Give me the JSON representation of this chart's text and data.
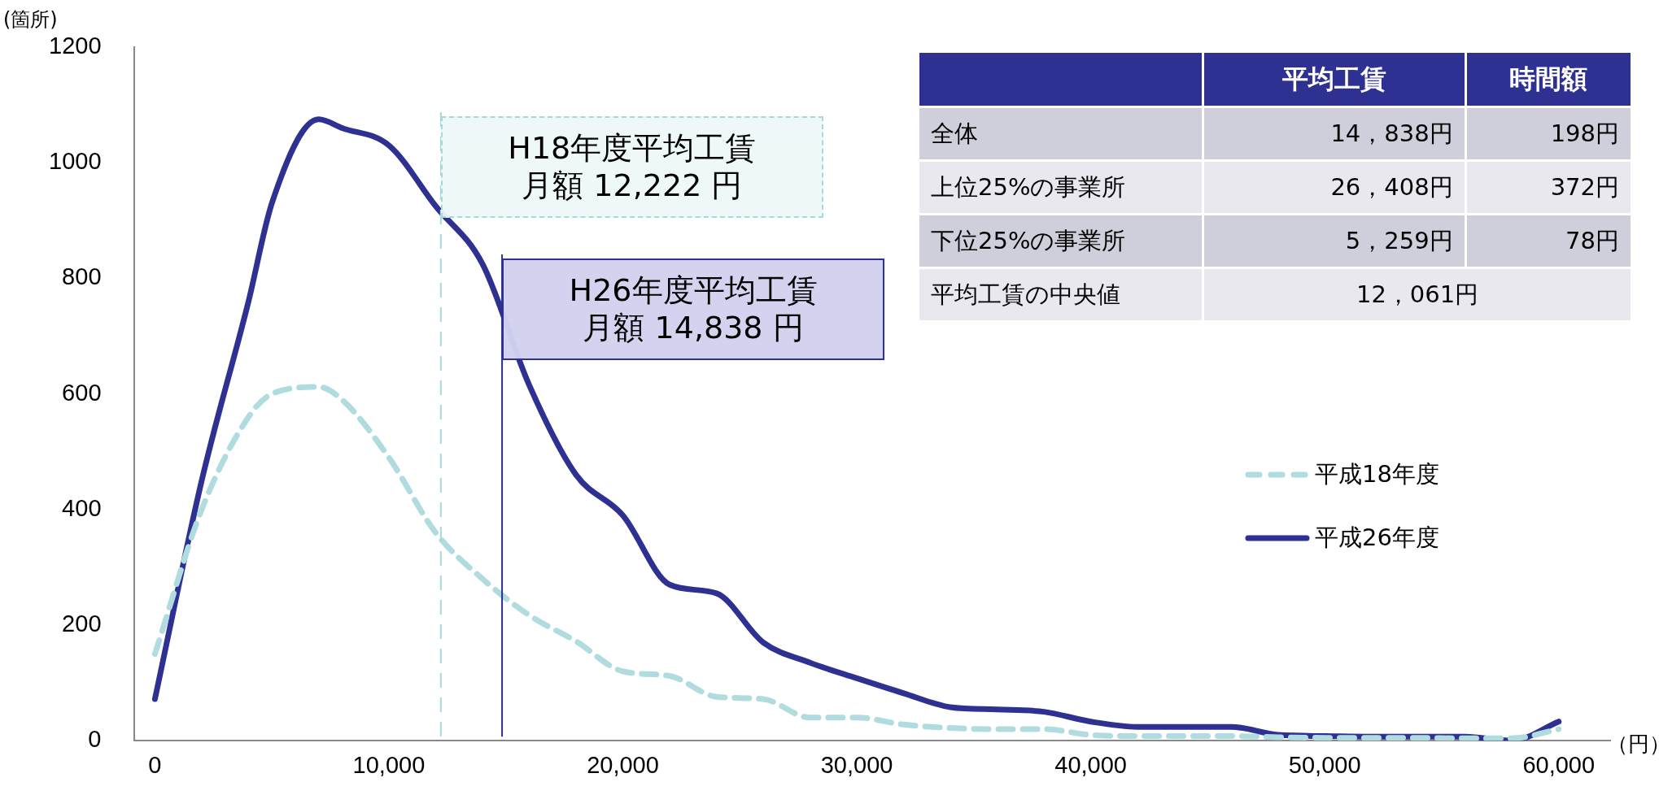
{
  "chart_data": {
    "type": "line",
    "ylabel": "(箇所)",
    "xlabel": "（円）",
    "xlim": [
      -900,
      62200
    ],
    "xticks": [
      {
        "value": 0,
        "label": "0"
      },
      {
        "value": 10000,
        "label": "10,000"
      },
      {
        "value": 20000,
        "label": "20,000"
      },
      {
        "value": 30000,
        "label": "30,000"
      },
      {
        "value": 40000,
        "label": "40,000"
      },
      {
        "value": 50000,
        "label": "50,000"
      },
      {
        "value": 60000,
        "label": "60,000"
      }
    ],
    "ylim": [
      0,
      1200
    ],
    "yticks": [
      0,
      200,
      400,
      600,
      800,
      1000,
      1200
    ],
    "grid": false,
    "legend": "right",
    "marker": "none",
    "x": [
      0,
      2000,
      4000,
      5000,
      7000,
      8000,
      10000,
      12000,
      14000,
      16000,
      18000,
      20000,
      22000,
      24000,
      26000,
      28000,
      30000,
      32000,
      34000,
      36000,
      38000,
      40000,
      42000,
      44000,
      46000,
      48000,
      50000,
      52000,
      54000,
      56000,
      58000,
      60000
    ],
    "series": [
      {
        "name": "平成18年度",
        "color": "#b0dce0",
        "line_style": "dashed",
        "values": [
          150,
          400,
          560,
          600,
          612,
          590,
          490,
          360,
          280,
          217,
          172,
          120,
          112,
          76,
          72,
          40,
          40,
          28,
          22,
          20,
          20,
          10,
          8,
          8,
          8,
          6,
          5,
          5,
          5,
          4,
          4,
          20
        ]
      },
      {
        "name": "平成26年度",
        "color": "#2e3192",
        "line_style": "solid",
        "values": [
          72,
          450,
          760,
          930,
          1075,
          1060,
          1030,
          925,
          825,
          615,
          460,
          390,
          270,
          255,
          170,
          135,
          108,
          82,
          58,
          54,
          50,
          33,
          24,
          24,
          24,
          10,
          8,
          7,
          7,
          7,
          0,
          33
        ]
      }
    ],
    "ref_lines": [
      {
        "axis": "x",
        "value": 12222,
        "label": "H18年度平均工賃月額 12,222 円",
        "color": "#a8d8dc",
        "line_style": "dashed"
      },
      {
        "axis": "x",
        "value": 14838,
        "label": "H26年度平均工賃月額 14,838 円",
        "color": "#2e3192",
        "line_style": "solid"
      }
    ],
    "annotations": [
      "平均工賃",
      "時間額",
      "全体",
      "14，838円",
      "198円",
      "上位25%の事業所",
      "26，408円",
      "372円",
      "下位25%の事業所",
      "5，259円",
      "78円",
      "平均工賃の中央値",
      "12，061円"
    ]
  }
}
